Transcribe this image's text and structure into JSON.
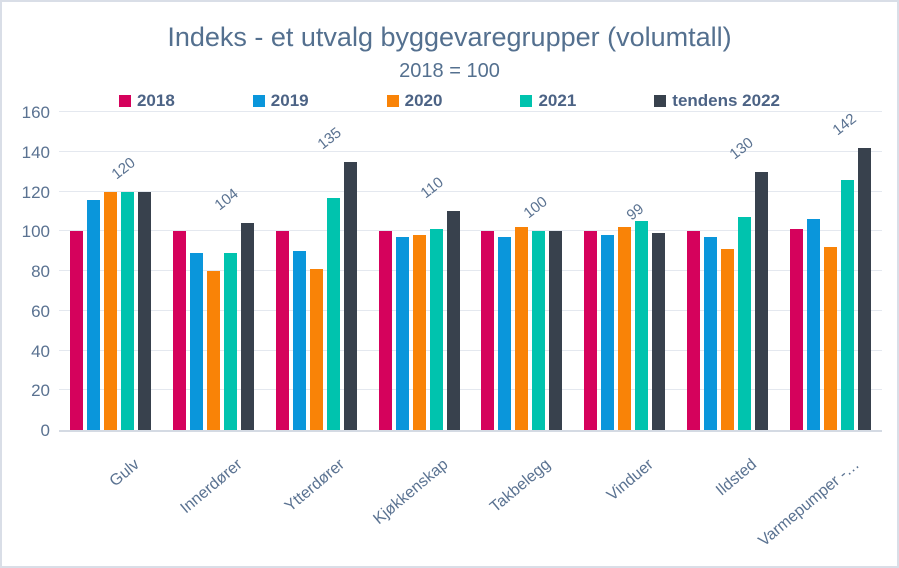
{
  "chart_data": {
    "type": "bar",
    "title": "Indeks - et utvalg byggevaregrupper (volumtall)",
    "subtitle": "2018 = 100",
    "categories": [
      "Gulv",
      "Innerdører",
      "Ytterdører",
      "Kjøkkenskap",
      "Takbelegg",
      "Vinduer",
      "Ildsted",
      "Varmepumper -…"
    ],
    "series": [
      {
        "name": "2018",
        "color": "#d5025c",
        "values": [
          100,
          100,
          100,
          100,
          100,
          100,
          100,
          101
        ]
      },
      {
        "name": "2019",
        "color": "#0a96db",
        "values": [
          116,
          89,
          90,
          97,
          97,
          98,
          97,
          106
        ]
      },
      {
        "name": "2020",
        "color": "#f98307",
        "values": [
          120,
          80,
          81,
          98,
          102,
          102,
          91,
          92
        ]
      },
      {
        "name": "2021",
        "color": "#00c3ae",
        "values": [
          120,
          89,
          117,
          101,
          100,
          105,
          107,
          126
        ]
      },
      {
        "name": "tendens 2022",
        "color": "#38414d",
        "values": [
          120,
          104,
          135,
          110,
          100,
          99,
          130,
          142
        ],
        "data_labels": [
          "120",
          "104",
          "135",
          "110",
          "100",
          "99",
          "130",
          "142"
        ]
      }
    ],
    "ylim": [
      0,
      160
    ],
    "ytick_step": 20,
    "yticks": [
      "0",
      "20",
      "40",
      "60",
      "80",
      "100",
      "120",
      "140",
      "160"
    ],
    "grid": true,
    "legend_position": "top",
    "axis_text_color": "#5a7291",
    "title_color": "#54708f",
    "legend_text_color": "#4c6385"
  }
}
